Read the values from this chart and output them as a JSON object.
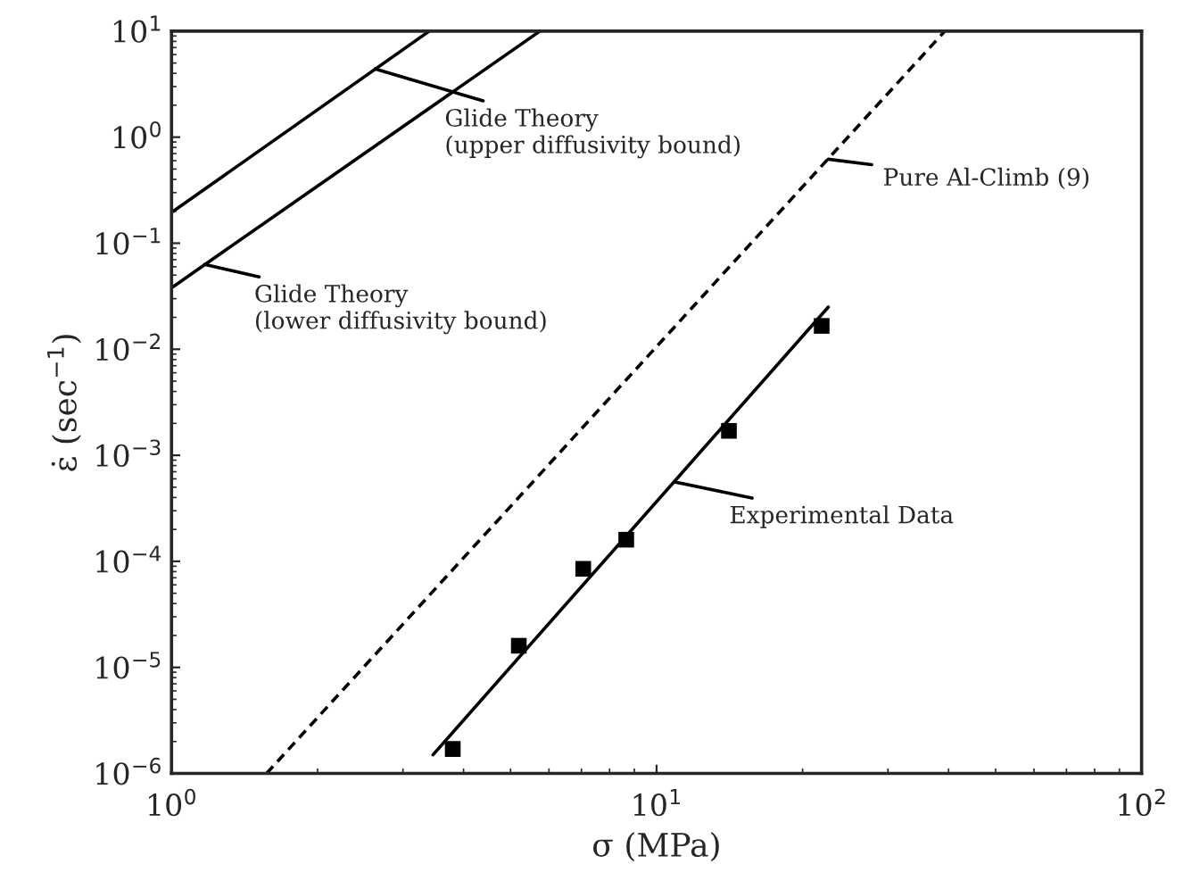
{
  "chart_data": {
    "type": "line",
    "xlabel": "σ (MPa)",
    "ylabel": "ε̇ (sec$^{−1}$)",
    "log": "xy",
    "grid": false,
    "legend": false,
    "xlim": [
      1,
      100
    ],
    "ylim": [
      1e-06,
      10
    ],
    "xticks": [
      {
        "value": 1,
        "label": "10$^{0}$"
      },
      {
        "value": 10,
        "label": "10$^{1}$"
      },
      {
        "value": 100,
        "label": "10$^{2}$"
      }
    ],
    "yticks": [
      {
        "value": 1e-06,
        "label": "10$^{−6}$"
      },
      {
        "value": 1e-05,
        "label": "10$^{−5}$"
      },
      {
        "value": 0.0001,
        "label": "10$^{−4}$"
      },
      {
        "value": 0.001,
        "label": "10$^{−3}$"
      },
      {
        "value": 0.01,
        "label": "10$^{−2}$"
      },
      {
        "value": 0.1,
        "label": "10$^{−1}$"
      },
      {
        "value": 1,
        "label": "10$^{0}$"
      },
      {
        "value": 10,
        "label": "10$^{1}$"
      }
    ],
    "series": [
      {
        "color": "#000000",
        "line_style": "solid",
        "x": [
          1,
          3.4
        ],
        "values": [
          0.195,
          10
        ]
      },
      {
        "color": "#000000",
        "line_style": "solid",
        "x": [
          1,
          5.75
        ],
        "values": [
          0.038,
          10
        ]
      },
      {
        "color": "#000000",
        "line_style": "dashed",
        "x": [
          1.57,
          39.3
        ],
        "values": [
          1e-06,
          10
        ]
      },
      {
        "color": "#000000",
        "line_style": "solid",
        "x": [
          3.46,
          22.6
        ],
        "values": [
          1.5e-06,
          0.025
        ]
      },
      {
        "type": "scatter",
        "color": "#000000",
        "marker": "square",
        "x": [
          3.8,
          5.2,
          7.06,
          8.66,
          14.1,
          21.9
        ],
        "values": [
          1.7e-06,
          1.6e-05,
          8.5e-05,
          0.00016,
          0.0017,
          0.0166
        ]
      }
    ],
    "annotations": [
      {
        "text": "Glide Theory\n(upper diffusivity bound)",
        "x": 2.63,
        "y": 4.4
      },
      {
        "text": "Glide Theory\n(lower diffusivity bound)",
        "x": 1.17,
        "y": 0.063
      },
      {
        "text": "Pure Al-Climb (9)",
        "x": 22.6,
        "y": 0.62
      },
      {
        "text": "Experimental Data",
        "x": 10.9,
        "y": 0.00056
      }
    ]
  }
}
